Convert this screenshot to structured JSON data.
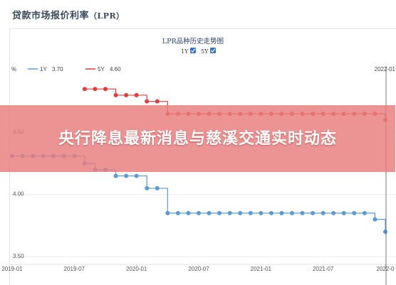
{
  "page": {
    "title_cn": "贷款市场报价利率",
    "title_en": "（LPR）"
  },
  "banner": {
    "headline": "央行降息最新消息与慈溪交通实时动态"
  },
  "chart_data": {
    "type": "line",
    "title": "LPR品种历史走势图",
    "unit_label": "%",
    "toggles": [
      {
        "label": "1Y",
        "checked": true
      },
      {
        "label": "5Y",
        "checked": true
      }
    ],
    "legend": [
      {
        "name": "1Y",
        "value": "3.70",
        "color": "#5b9bd5"
      },
      {
        "name": "5Y",
        "value": "4.60",
        "color": "#e03c3c"
      }
    ],
    "cursor_date_label": "2022-01",
    "x_ticks": [
      "2019-01",
      "2019-07",
      "2020-01",
      "2020-07",
      "2021-01",
      "2021-07",
      "2022-0"
    ],
    "y_ticks": [
      "3.50",
      "4.00",
      "4.50"
    ],
    "ylim": [
      3.5,
      5.0
    ],
    "x_range": [
      "2019-01",
      "2022-01"
    ],
    "series": [
      {
        "name": "1Y",
        "color": "#5b9bd5",
        "x": [
          "2019-01",
          "2019-02",
          "2019-03",
          "2019-04",
          "2019-05",
          "2019-06",
          "2019-07",
          "2019-08",
          "2019-09",
          "2019-10",
          "2019-11",
          "2019-12",
          "2020-01",
          "2020-02",
          "2020-03",
          "2020-04",
          "2020-05",
          "2020-06",
          "2020-07",
          "2020-08",
          "2020-09",
          "2020-10",
          "2020-11",
          "2020-12",
          "2021-01",
          "2021-02",
          "2021-03",
          "2021-04",
          "2021-05",
          "2021-06",
          "2021-07",
          "2021-08",
          "2021-09",
          "2021-10",
          "2021-11",
          "2021-12",
          "2022-01"
        ],
        "values": [
          4.31,
          4.31,
          4.31,
          4.31,
          4.31,
          4.31,
          4.31,
          4.25,
          4.2,
          4.2,
          4.15,
          4.15,
          4.15,
          4.05,
          4.05,
          3.85,
          3.85,
          3.85,
          3.85,
          3.85,
          3.85,
          3.85,
          3.85,
          3.85,
          3.85,
          3.85,
          3.85,
          3.85,
          3.85,
          3.85,
          3.85,
          3.85,
          3.85,
          3.85,
          3.85,
          3.8,
          3.7
        ]
      },
      {
        "name": "5Y",
        "color": "#e03c3c",
        "x": [
          "2019-08",
          "2019-09",
          "2019-10",
          "2019-11",
          "2019-12",
          "2020-01",
          "2020-02",
          "2020-03",
          "2020-04",
          "2020-05",
          "2020-06",
          "2020-07",
          "2020-08",
          "2020-09",
          "2020-10",
          "2020-11",
          "2020-12",
          "2021-01",
          "2021-02",
          "2021-03",
          "2021-04",
          "2021-05",
          "2021-06",
          "2021-07",
          "2021-08",
          "2021-09",
          "2021-10",
          "2021-11",
          "2021-12",
          "2022-01"
        ],
        "values": [
          4.85,
          4.85,
          4.85,
          4.8,
          4.8,
          4.8,
          4.75,
          4.75,
          4.65,
          4.65,
          4.65,
          4.65,
          4.65,
          4.65,
          4.65,
          4.65,
          4.65,
          4.65,
          4.65,
          4.65,
          4.65,
          4.65,
          4.65,
          4.65,
          4.65,
          4.65,
          4.65,
          4.65,
          4.65,
          4.6
        ]
      }
    ]
  }
}
